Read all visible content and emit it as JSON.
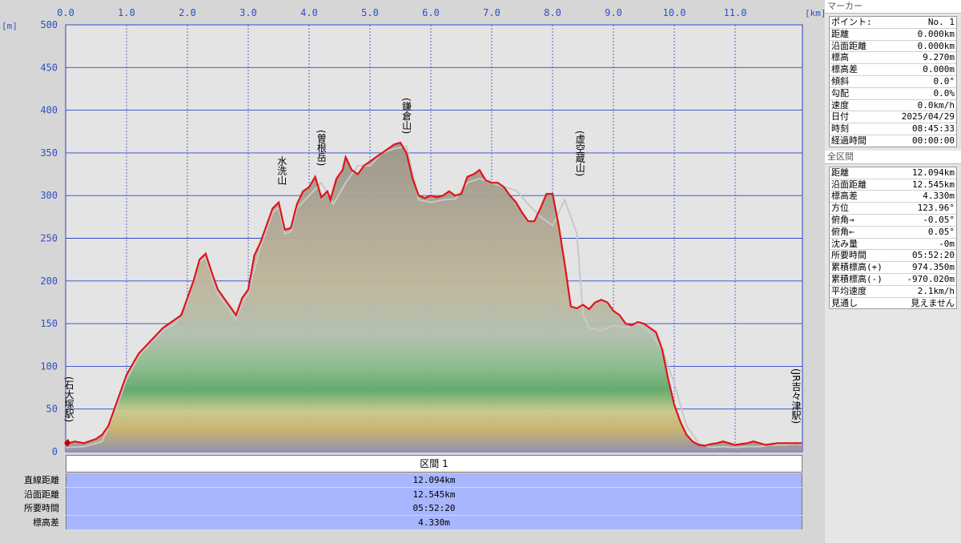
{
  "chart_data": {
    "type": "area",
    "x_unit": "[km]",
    "y_unit": "[m]",
    "xlim": [
      0,
      12.094
    ],
    "ylim": [
      0,
      500
    ],
    "x_ticks": [
      "0.0",
      "1.0",
      "2.0",
      "3.0",
      "4.0",
      "5.0",
      "6.0",
      "7.0",
      "8.0",
      "9.0",
      "10.0",
      "11.0"
    ],
    "y_ticks": [
      "0",
      "50",
      "100",
      "150",
      "200",
      "250",
      "300",
      "350",
      "400",
      "450",
      "500"
    ],
    "grid": true,
    "series": [
      {
        "color": "#e0141a",
        "x": [
          0,
          0.15,
          0.3,
          0.5,
          0.6,
          0.7,
          0.8,
          1.0,
          1.2,
          1.4,
          1.6,
          1.8,
          1.9,
          2.0,
          2.1,
          2.2,
          2.3,
          2.4,
          2.5,
          2.55,
          2.7,
          2.8,
          2.9,
          3.0,
          3.1,
          3.2,
          3.3,
          3.4,
          3.5,
          3.6,
          3.7,
          3.8,
          3.9,
          4.0,
          4.1,
          4.2,
          4.3,
          4.35,
          4.45,
          4.55,
          4.6,
          4.7,
          4.8,
          4.9,
          5.0,
          5.1,
          5.2,
          5.3,
          5.4,
          5.5,
          5.6,
          5.7,
          5.8,
          5.9,
          6.0,
          6.1,
          6.2,
          6.3,
          6.4,
          6.5,
          6.6,
          6.7,
          6.8,
          6.9,
          7.0,
          7.1,
          7.2,
          7.3,
          7.4,
          7.5,
          7.6,
          7.7,
          7.8,
          7.9,
          8.0,
          8.1,
          8.2,
          8.3,
          8.4,
          8.5,
          8.6,
          8.7,
          8.8,
          8.9,
          9.0,
          9.1,
          9.2,
          9.3,
          9.4,
          9.5,
          9.6,
          9.7,
          9.8,
          9.9,
          10.0,
          10.1,
          10.2,
          10.3,
          10.4,
          10.5,
          10.6,
          10.7,
          10.8,
          10.9,
          11.0,
          11.1,
          11.2,
          11.3,
          11.4,
          11.5,
          11.6,
          11.7,
          11.8,
          11.9,
          12.0,
          12.094
        ],
        "y": [
          9,
          12,
          10,
          15,
          20,
          30,
          50,
          90,
          115,
          130,
          145,
          155,
          160,
          180,
          200,
          225,
          232,
          210,
          190,
          185,
          170,
          160,
          180,
          190,
          230,
          245,
          265,
          285,
          292,
          260,
          262,
          290,
          305,
          310,
          322,
          298,
          305,
          295,
          320,
          330,
          345,
          330,
          325,
          335,
          340,
          345,
          350,
          355,
          360,
          362,
          350,
          320,
          300,
          297,
          300,
          298,
          300,
          305,
          300,
          302,
          322,
          325,
          330,
          318,
          315,
          315,
          310,
          300,
          292,
          280,
          270,
          270,
          285,
          302,
          302,
          265,
          220,
          170,
          168,
          172,
          167,
          175,
          178,
          175,
          165,
          160,
          150,
          148,
          152,
          150,
          145,
          140,
          120,
          85,
          55,
          35,
          20,
          12,
          8,
          7,
          9,
          10,
          12,
          10,
          8,
          9,
          10,
          12,
          10,
          8,
          9,
          10,
          10,
          10,
          10,
          10
        ],
        "x_keep": true
      },
      {
        "color": "#c8c8c8",
        "x": [
          0,
          0.3,
          0.6,
          0.8,
          1.0,
          1.2,
          1.4,
          1.6,
          1.8,
          2.0,
          2.2,
          2.3,
          2.4,
          2.5,
          2.7,
          2.8,
          2.9,
          3.0,
          3.2,
          3.4,
          3.5,
          3.6,
          3.7,
          3.8,
          4.0,
          4.2,
          4.4,
          4.6,
          4.8,
          5.0,
          5.2,
          5.4,
          5.6,
          5.8,
          6.0,
          6.2,
          6.4,
          6.6,
          6.8,
          7.0,
          7.2,
          7.4,
          7.6,
          7.8,
          8.0,
          8.1,
          8.2,
          8.3,
          8.4,
          8.5,
          8.6,
          8.8,
          9.0,
          9.2,
          9.4,
          9.6,
          9.8,
          10.0,
          10.2,
          10.4,
          10.6,
          10.8,
          11.0,
          11.2,
          11.4,
          11.6,
          11.8,
          12.0,
          12.094
        ],
        "y": [
          5,
          6,
          12,
          45,
          85,
          112,
          128,
          142,
          150,
          175,
          222,
          228,
          205,
          185,
          165,
          155,
          175,
          185,
          240,
          280,
          286,
          255,
          258,
          285,
          300,
          315,
          290,
          315,
          335,
          335,
          350,
          355,
          358,
          295,
          292,
          295,
          296,
          315,
          320,
          315,
          310,
          306,
          290,
          275,
          265,
          280,
          295,
          275,
          255,
          160,
          145,
          142,
          148,
          145,
          150,
          140,
          120,
          80,
          30,
          10,
          5,
          6,
          5,
          6,
          6,
          8,
          8,
          9,
          8
        ],
        "x_keep": true
      }
    ],
    "annotations": [
      {
        "text": "(石大塚駅)",
        "x": 0.02
      },
      {
        "text": "水洗山",
        "x": 3.55
      },
      {
        "text": "(曽根岳)",
        "x": 4.2
      },
      {
        "text": "(鎌倉山)",
        "x": 5.6
      },
      {
        "text": "(虚空蔵山)",
        "x": 8.45
      },
      {
        "text": "(JR吉々津駅)",
        "x": 12.0
      }
    ]
  },
  "sidebar": {
    "marker_title": "マーカー",
    "marker_items": [
      {
        "label": "ポイント:",
        "value": "No. 1"
      },
      {
        "label": "距離",
        "value": "0.000km"
      },
      {
        "label": "沿面距離",
        "value": "0.000km"
      },
      {
        "label": "標高",
        "value": "9.270m"
      },
      {
        "label": "標高差",
        "value": "0.000m"
      },
      {
        "label": "傾斜",
        "value": "0.0°"
      },
      {
        "label": "勾配",
        "value": "0.0%"
      },
      {
        "label": "速度",
        "value": "0.0km/h"
      },
      {
        "label": "日付",
        "value": "2025/04/29"
      },
      {
        "label": "時刻",
        "value": "08:45:33"
      },
      {
        "label": "経過時間",
        "value": "00:00:00"
      }
    ],
    "range_title": "全区間",
    "range_items": [
      {
        "label": "距離",
        "value": "12.094km"
      },
      {
        "label": "沿面距離",
        "value": "12.545km"
      },
      {
        "label": "標高差",
        "value": "4.330m"
      },
      {
        "label": "方位",
        "value": "123.96°"
      },
      {
        "label": "俯角→",
        "value": "-0.05°"
      },
      {
        "label": "俯角←",
        "value": "0.05°"
      },
      {
        "label": "沈み量",
        "value": "-0m"
      },
      {
        "label": "所要時間",
        "value": "05:52:20"
      },
      {
        "label": "累積標高(+)",
        "value": "974.350m"
      },
      {
        "label": "累積標高(-)",
        "value": "-970.020m"
      },
      {
        "label": "平均速度",
        "value": "2.1km/h"
      },
      {
        "label": "見通し",
        "value": "見えません"
      }
    ]
  },
  "summary": {
    "header": "区間 1",
    "rows": [
      {
        "label": "直線距離",
        "value": "12.094km"
      },
      {
        "label": "沿面距離",
        "value": "12.545km"
      },
      {
        "label": "所要時間",
        "value": "05:52:20"
      },
      {
        "label": "標高差",
        "value": "4.330m"
      }
    ]
  }
}
